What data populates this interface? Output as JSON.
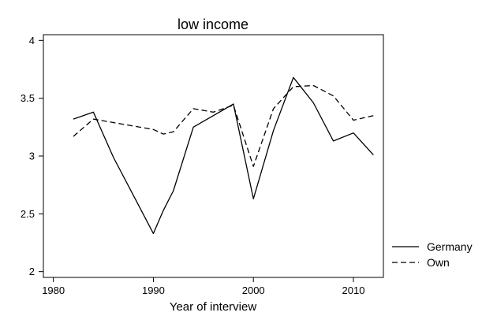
{
  "chart_data": {
    "type": "line",
    "title": "low income",
    "xlabel": "Year of interview",
    "ylabel": "",
    "xlim": [
      1979,
      2013
    ],
    "ylim": [
      1.95,
      4.05
    ],
    "xticks": [
      1980,
      1990,
      2000,
      2010
    ],
    "yticks": [
      2,
      2.5,
      3,
      3.5,
      4
    ],
    "ytick_labels": [
      "2",
      "2.5",
      "3",
      "3.5",
      "4"
    ],
    "grid": false,
    "legend": "right",
    "series": [
      {
        "name": "Germany",
        "style": "solid",
        "color": "#000000",
        "x": [
          1982,
          1984,
          1986,
          1988,
          1990,
          1991,
          1992,
          1994,
          1996,
          1998,
          2000,
          2002,
          2004,
          2006,
          2008,
          2010,
          2012
        ],
        "y": [
          3.32,
          3.38,
          2.99,
          2.66,
          2.33,
          2.53,
          2.7,
          3.25,
          3.35,
          3.45,
          2.63,
          3.22,
          3.68,
          3.46,
          3.13,
          3.2,
          3.01
        ]
      },
      {
        "name": "Own",
        "style": "dashed",
        "color": "#000000",
        "x": [
          1982,
          1984,
          1986,
          1988,
          1990,
          1991,
          1992,
          1994,
          1996,
          1998,
          2000,
          2002,
          2004,
          2006,
          2008,
          2010,
          2012
        ],
        "y": [
          3.17,
          3.32,
          3.29,
          3.26,
          3.23,
          3.19,
          3.21,
          3.41,
          3.38,
          3.44,
          2.91,
          3.41,
          3.6,
          3.61,
          3.52,
          3.31,
          3.35
        ]
      }
    ]
  }
}
